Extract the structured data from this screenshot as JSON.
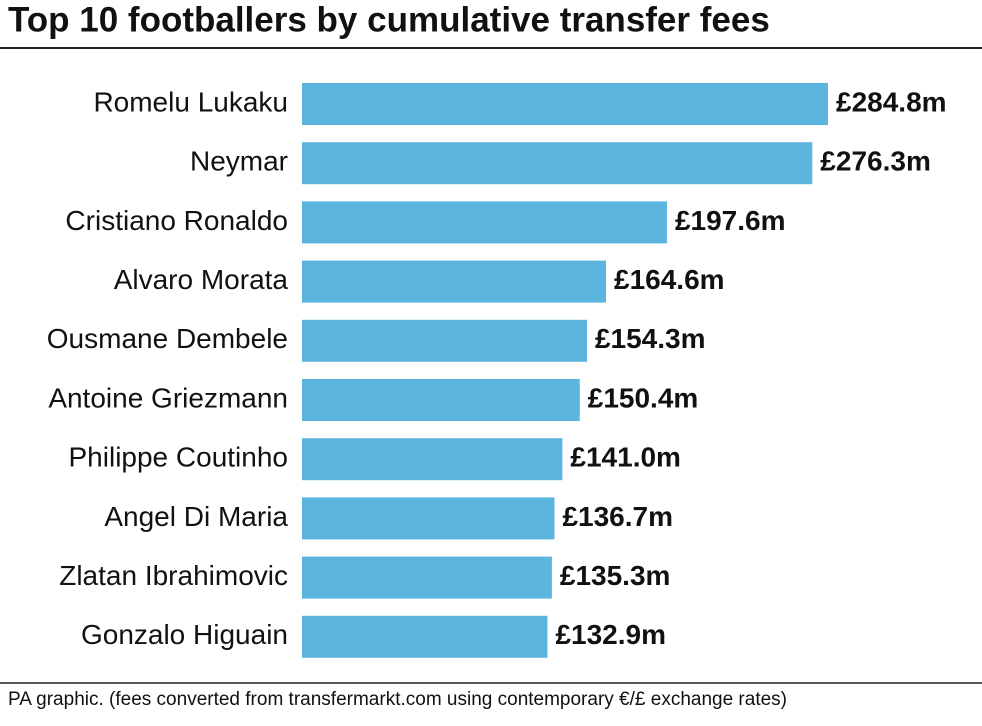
{
  "chart_data": {
    "type": "bar",
    "orientation": "horizontal",
    "title": "Top 10 footballers by cumulative transfer fees",
    "categories": [
      "Romelu Lukaku",
      "Neymar",
      "Cristiano Ronaldo",
      "Alvaro Morata",
      "Ousmane Dembele",
      "Antoine Griezmann",
      "Philippe Coutinho",
      "Angel Di Maria",
      "Zlatan Ibrahimovic",
      "Gonzalo Higuain"
    ],
    "values": [
      284.8,
      276.3,
      197.6,
      164.6,
      154.3,
      150.4,
      141.0,
      136.7,
      135.3,
      132.9
    ],
    "value_labels": [
      "£284.8m",
      "£276.3m",
      "£197.6m",
      "£164.6m",
      "£154.3m",
      "£150.4m",
      "£141.0m",
      "£136.7m",
      "£135.3m",
      "£132.9m"
    ],
    "color": "#5bb5de",
    "footnote": "PA graphic. (fees converted from transfermarkt.com using contemporary €/£ exchange rates)"
  }
}
